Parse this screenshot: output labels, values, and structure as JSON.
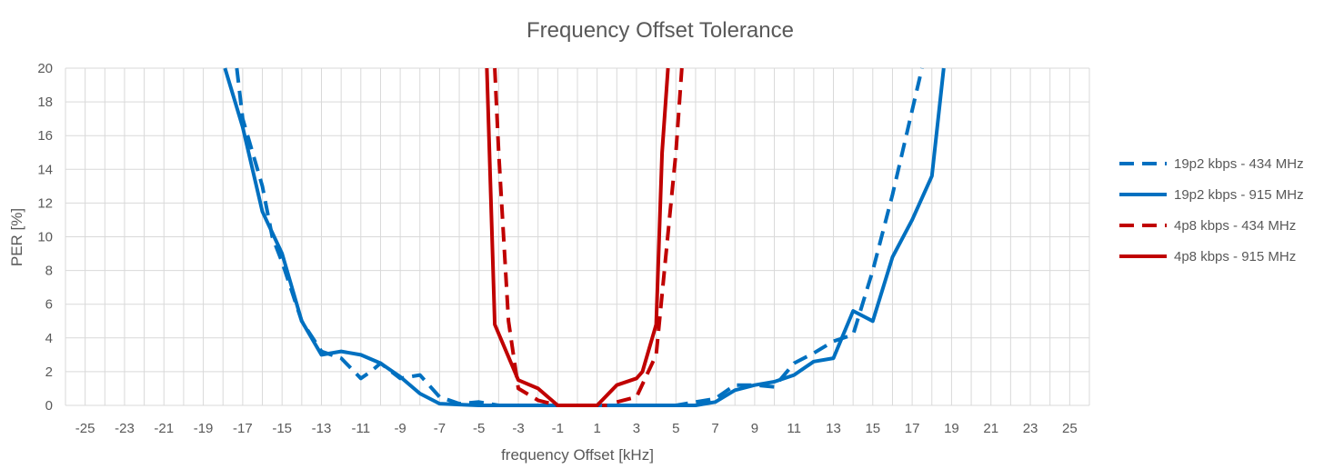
{
  "chart_data": {
    "type": "line",
    "title": "Frequency Offset Tolerance",
    "xlabel": "frequency Offset [kHz]",
    "ylabel": "PER [%]",
    "xlim": [
      -26,
      26
    ],
    "ylim": [
      0,
      20
    ],
    "x_ticks": [
      -25,
      -23,
      -21,
      -19,
      -17,
      -15,
      -13,
      -11,
      -9,
      -7,
      -5,
      -3,
      -1,
      1,
      3,
      5,
      7,
      9,
      11,
      13,
      15,
      17,
      19,
      21,
      23,
      25
    ],
    "y_ticks": [
      0,
      2,
      4,
      6,
      8,
      10,
      12,
      14,
      16,
      18,
      20
    ],
    "grid": true,
    "legend_position": "right",
    "series": [
      {
        "name": "19p2 kbps - 434 MHz",
        "color": "#0070c0",
        "dash": "dashed",
        "x": [
          -17.3,
          -17,
          -16,
          -15.5,
          -15,
          -14,
          -13,
          -12,
          -11.5,
          -11,
          -10.5,
          -10,
          -9,
          -8,
          -7,
          -6,
          -5,
          -4,
          -3,
          -2,
          -1,
          0,
          1,
          2,
          3,
          4,
          5,
          6,
          7,
          8,
          9,
          10,
          11,
          12,
          13,
          14,
          15,
          16,
          17,
          17.5
        ],
        "y": [
          20,
          17,
          13,
          10,
          8.5,
          5,
          3.2,
          2.8,
          2.2,
          1.6,
          2.0,
          2.5,
          1.6,
          1.8,
          0.5,
          0.1,
          0.2,
          0,
          0,
          0,
          0,
          0,
          0,
          0,
          0,
          0,
          0,
          0.2,
          0.4,
          1.2,
          1.2,
          1.1,
          2.5,
          3.1,
          3.8,
          4.2,
          8.0,
          12.5,
          17.5,
          20
        ]
      },
      {
        "name": "19p2 kbps - 915 MHz",
        "color": "#0070c0",
        "dash": "solid",
        "x": [
          -17.9,
          -17,
          -16,
          -15,
          -14,
          -13,
          -12,
          -11,
          -10,
          -9,
          -8,
          -7,
          -6,
          -5,
          -4,
          -3,
          -2,
          -1,
          0,
          1,
          2,
          3,
          4,
          5,
          6,
          7,
          8,
          9,
          10,
          11,
          12,
          13,
          14,
          15,
          16,
          17,
          18,
          18.6
        ],
        "y": [
          20,
          16.5,
          11.5,
          9,
          5,
          3,
          3.2,
          3.0,
          2.5,
          1.7,
          0.7,
          0.1,
          0.05,
          0,
          0,
          0,
          0,
          0,
          0,
          0,
          0,
          0,
          0,
          0,
          0,
          0.2,
          0.9,
          1.2,
          1.4,
          1.8,
          2.6,
          2.8,
          5.6,
          5.0,
          8.8,
          11.0,
          13.6,
          20
        ]
      },
      {
        "name": "4p8 kbps - 434 MHz",
        "color": "#c00000",
        "dash": "dashed",
        "x": [
          -4.2,
          -4,
          -3.5,
          -3,
          -2,
          -1,
          0,
          1,
          1.5,
          2,
          3,
          4,
          5,
          5.3
        ],
        "y": [
          20,
          15,
          5,
          1,
          0.3,
          0,
          0,
          0,
          0,
          0.2,
          0.5,
          3,
          15,
          20
        ],
        "gaps_after": [
          8
        ]
      },
      {
        "name": "4p8 kbps - 915 MHz",
        "color": "#c00000",
        "dash": "solid",
        "x": [
          -4.6,
          -4.2,
          -3,
          -2,
          -1,
          0,
          1,
          2,
          3,
          3.3,
          4,
          4.3,
          4.6
        ],
        "y": [
          20,
          4.8,
          1.5,
          1.0,
          0,
          0,
          0,
          1.2,
          1.6,
          2.0,
          4.8,
          15,
          20
        ]
      }
    ]
  }
}
